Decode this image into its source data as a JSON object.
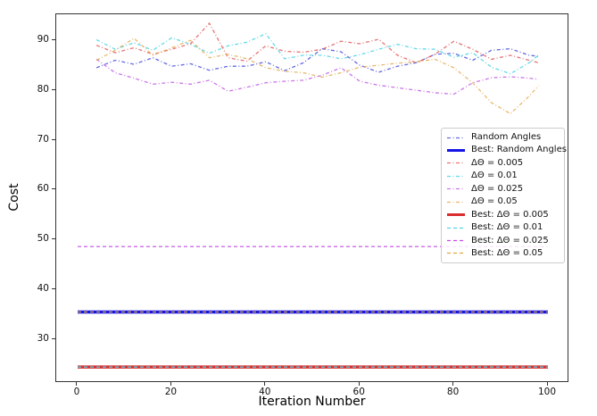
{
  "figure": {
    "xlabel": "Iteration Number",
    "ylabel": "Cost"
  },
  "chart_data": {
    "type": "line",
    "title": "",
    "xlabel": "Iteration Number",
    "ylabel": "Cost",
    "grid": false,
    "legend_position": "center right",
    "xlim": [
      -4.55,
      104.55
    ],
    "ylim": [
      21.4,
      95.2
    ],
    "xticks": [
      0,
      20,
      40,
      60,
      80,
      100
    ],
    "yticks": [
      30,
      40,
      50,
      60,
      70,
      80,
      90
    ],
    "x": [
      4,
      8,
      12,
      16,
      20,
      24,
      28,
      32,
      36,
      40,
      44,
      48,
      52,
      56,
      60,
      64,
      68,
      72,
      76,
      80,
      84,
      88,
      92,
      96,
      98
    ],
    "series": [
      {
        "id": "random_angles",
        "name": "Random Angles",
        "color": "#3d45d8",
        "style": "dashdot",
        "width": 1.3,
        "opacity": 0.8,
        "values": [
          84.5,
          86.0,
          85.2,
          86.5,
          84.8,
          85.3,
          84.0,
          84.8,
          84.8,
          85.7,
          83.9,
          85.5,
          88.3,
          87.7,
          85.0,
          83.6,
          84.8,
          85.5,
          87.2,
          87.4,
          86.0,
          88.0,
          88.3,
          87.0,
          86.8
        ]
      },
      {
        "id": "d005",
        "name": "ΔΘ = 0.005",
        "color": "#e05050",
        "style": "dashdot",
        "width": 1.3,
        "opacity": 0.8,
        "values": [
          89.0,
          87.5,
          88.5,
          87.2,
          88.2,
          89.3,
          93.4,
          86.5,
          85.8,
          88.9,
          87.8,
          87.6,
          88.2,
          89.8,
          89.3,
          90.2,
          87.0,
          85.5,
          87.2,
          89.8,
          88.2,
          86.2,
          87.0,
          86.0,
          85.5
        ]
      },
      {
        "id": "d01",
        "name": "ΔΘ = 0.01",
        "color": "#3fd0e2",
        "style": "dashdot",
        "width": 1.3,
        "opacity": 0.8,
        "values": [
          90.1,
          88.2,
          89.5,
          88.0,
          90.5,
          89.2,
          87.4,
          88.9,
          89.6,
          91.3,
          86.3,
          87.0,
          87.0,
          86.3,
          87.1,
          88.2,
          89.2,
          88.3,
          88.2,
          86.6,
          87.5,
          84.6,
          83.3,
          85.5,
          87.0
        ]
      },
      {
        "id": "d025",
        "name": "ΔΘ = 0.025",
        "color": "#bb55e0",
        "style": "dashdot",
        "width": 1.3,
        "opacity": 0.8,
        "values": [
          86.2,
          83.5,
          82.4,
          81.2,
          81.6,
          81.2,
          82.0,
          79.8,
          80.6,
          81.5,
          81.8,
          82.0,
          83.0,
          84.5,
          81.8,
          81.0,
          80.5,
          80.0,
          79.5,
          79.2,
          81.5,
          82.5,
          82.7,
          82.4,
          82.2
        ]
      },
      {
        "id": "d05",
        "name": "ΔΘ = 0.05",
        "color": "#e0a84c",
        "style": "dashdot",
        "width": 1.3,
        "opacity": 0.8,
        "values": [
          86.0,
          88.0,
          90.4,
          87.0,
          88.5,
          90.0,
          86.5,
          87.2,
          86.3,
          84.5,
          83.8,
          83.5,
          82.6,
          83.5,
          84.6,
          85.0,
          85.4,
          85.7,
          86.2,
          84.5,
          81.5,
          77.5,
          75.3,
          78.8,
          80.9
        ]
      },
      {
        "id": "best_random_angles",
        "name": "Best: Random Angles",
        "color": "#1414e6",
        "style": "solid",
        "width": 3.5,
        "opacity": 1,
        "y_const": 35.6,
        "x_span": [
          0,
          100
        ]
      },
      {
        "id": "best_d005",
        "name": "Best: ΔΘ = 0.005",
        "color": "#d92e2e",
        "style": "solid",
        "width": 3.5,
        "opacity": 1,
        "y_const": 24.6,
        "x_span": [
          0,
          100
        ]
      },
      {
        "id": "best_d01",
        "name": "Best: ΔΘ = 0.01",
        "color": "#56d2e8",
        "style": "dashed",
        "width": 1.2,
        "opacity": 1,
        "y_const": 24.6,
        "x_span": [
          0,
          100
        ]
      },
      {
        "id": "best_d025",
        "name": "Best: ΔΘ = 0.025",
        "color": "#c44fe2",
        "style": "dashed",
        "width": 1.2,
        "opacity": 1,
        "y_const": 48.7,
        "x_span": [
          0,
          100
        ]
      },
      {
        "id": "best_d05",
        "name": "Best: ΔΘ = 0.05",
        "color": "#ddaa45",
        "style": "dashed",
        "width": 1.2,
        "opacity": 1,
        "y_const": 35.6,
        "x_span": [
          0,
          100
        ]
      }
    ],
    "legend_order": [
      "random_angles",
      "best_random_angles",
      "d005",
      "d01",
      "d025",
      "d05",
      "best_d005",
      "best_d01",
      "best_d025",
      "best_d05"
    ]
  }
}
